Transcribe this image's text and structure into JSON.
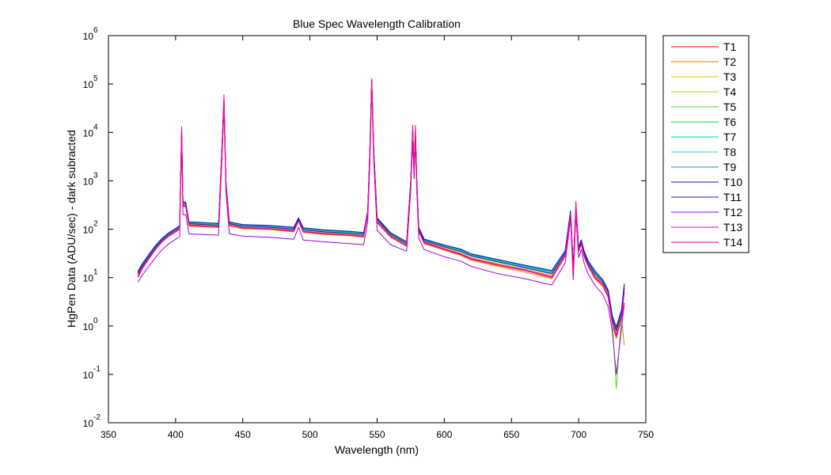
{
  "chart_data": {
    "type": "line",
    "title": "Blue Spec Wavelength Calibration",
    "xlabel": "Wavelength (nm)",
    "ylabel": "HgPen Data (ADU/sec) - dark subracted",
    "xlim": [
      350,
      750
    ],
    "ylim": [
      0.01,
      1000000
    ],
    "yscale": "log",
    "xticks": [
      350,
      400,
      450,
      500,
      550,
      600,
      650,
      700,
      750
    ],
    "yticks": [
      {
        "base": "10",
        "exp": "-2",
        "value": 0.01
      },
      {
        "base": "10",
        "exp": "-1",
        "value": 0.1
      },
      {
        "base": "10",
        "exp": "0",
        "value": 1
      },
      {
        "base": "10",
        "exp": "1",
        "value": 10
      },
      {
        "base": "10",
        "exp": "2",
        "value": 100
      },
      {
        "base": "10",
        "exp": "3",
        "value": 1000
      },
      {
        "base": "10",
        "exp": "4",
        "value": 10000
      },
      {
        "base": "10",
        "exp": "5",
        "value": 100000
      },
      {
        "base": "10",
        "exp": "6",
        "value": 1000000
      }
    ],
    "grid": false,
    "legend_position": "outside-right",
    "x": [
      372,
      375,
      380,
      385,
      390,
      395,
      400,
      403,
      404.5,
      405.5,
      407.5,
      410,
      420,
      432,
      434.5,
      436,
      437.5,
      440,
      450,
      470,
      488,
      491.5,
      495,
      510,
      530,
      540,
      543,
      544.5,
      546,
      547.5,
      550,
      560,
      572,
      575,
      576.5,
      577.5,
      578.5,
      579.5,
      581,
      585,
      600,
      612,
      620,
      640,
      660,
      680,
      690,
      694,
      696,
      698,
      700,
      702,
      704,
      707,
      712,
      718,
      722,
      725,
      728,
      732,
      734
    ],
    "series": [
      {
        "name": "T1",
        "color": "#ff0000",
        "values": [
          10,
          15,
          24,
          38,
          55,
          72,
          88,
          100,
          9000,
          300,
          300,
          120,
          115,
          110,
          4000,
          40000,
          800,
          120,
          105,
          100,
          90,
          150,
          88,
          80,
          75,
          70,
          200,
          3000,
          100000,
          3500,
          140,
          70,
          45,
          800,
          9000,
          1500,
          8500,
          900,
          90,
          52,
          38,
          30,
          24,
          18,
          14,
          10,
          28,
          200,
          14,
          250,
          35,
          50,
          28,
          18,
          10,
          7,
          4,
          1.2,
          0.6,
          1.5,
          2.5
        ]
      },
      {
        "name": "T2",
        "color": "#ee7700",
        "values": [
          10,
          15,
          24,
          38,
          55,
          72,
          88,
          100,
          8800,
          290,
          290,
          115,
          112,
          108,
          3900,
          39000,
          780,
          118,
          102,
          98,
          88,
          145,
          86,
          78,
          73,
          68,
          195,
          2900,
          98000,
          3400,
          135,
          68,
          44,
          790,
          8800,
          1450,
          8300,
          880,
          88,
          50,
          37,
          29,
          23,
          17,
          13,
          9.5,
          27,
          195,
          13,
          245,
          34,
          48,
          27,
          17,
          9.5,
          6.5,
          3.8,
          1.1,
          0.55,
          1.4,
          0.4
        ]
      },
      {
        "name": "T3",
        "color": "#e0c000",
        "values": [
          11,
          16,
          26,
          40,
          58,
          76,
          92,
          105,
          9500,
          320,
          320,
          125,
          120,
          115,
          4200,
          42000,
          850,
          125,
          110,
          105,
          95,
          155,
          92,
          84,
          78,
          73,
          210,
          3200,
          105000,
          3700,
          150,
          74,
          47,
          850,
          9500,
          1600,
          9000,
          950,
          95,
          55,
          40,
          32,
          26,
          19,
          15,
          11,
          30,
          210,
          15,
          260,
          37,
          52,
          30,
          19,
          11,
          7.5,
          4.5,
          1.3,
          0.7,
          1.6,
          7
        ]
      },
      {
        "name": "T4",
        "color": "#c0d000",
        "values": [
          11,
          16,
          26,
          40,
          58,
          76,
          92,
          106,
          9600,
          325,
          320,
          126,
          121,
          116,
          4250,
          43000,
          860,
          126,
          111,
          106,
          96,
          156,
          93,
          85,
          79,
          74,
          212,
          3250,
          106000,
          3750,
          152,
          75,
          48,
          860,
          9600,
          1620,
          9100,
          960,
          96,
          56,
          41,
          33,
          26,
          19.5,
          15,
          11,
          30,
          212,
          15,
          262,
          37,
          53,
          30,
          19,
          11,
          7.6,
          4.6,
          1.3,
          0.7,
          1.7,
          5
        ]
      },
      {
        "name": "T5",
        "color": "#50e020",
        "values": [
          12,
          17,
          27,
          42,
          60,
          79,
          96,
          110,
          10000,
          340,
          330,
          130,
          126,
          120,
          4400,
          45000,
          900,
          130,
          115,
          110,
          100,
          160,
          97,
          88,
          82,
          77,
          220,
          3400,
          110000,
          3900,
          160,
          78,
          50,
          900,
          10000,
          1700,
          9500,
          1000,
          100,
          58,
          43,
          35,
          28,
          21,
          16,
          12,
          32,
          220,
          16,
          270,
          39,
          55,
          32,
          20,
          12,
          8,
          5,
          1.4,
          0.05,
          1.8,
          6
        ]
      },
      {
        "name": "T6",
        "color": "#00d840",
        "values": [
          12,
          17,
          27,
          42,
          60,
          79,
          96,
          110,
          10000,
          340,
          330,
          130,
          126,
          120,
          4400,
          45000,
          900,
          130,
          115,
          110,
          100,
          160,
          97,
          88,
          82,
          77,
          220,
          3400,
          110000,
          3900,
          160,
          78,
          50,
          900,
          10000,
          1700,
          9500,
          1000,
          100,
          58,
          43,
          35,
          28,
          21,
          16,
          12,
          32,
          220,
          16,
          270,
          39,
          55,
          32,
          20,
          12,
          8,
          5,
          1.4,
          0.8,
          1.8,
          6
        ]
      },
      {
        "name": "T7",
        "color": "#00e090",
        "values": [
          12.5,
          18,
          28,
          43,
          62,
          81,
          99,
          113,
          10500,
          350,
          340,
          134,
          130,
          124,
          4500,
          46000,
          920,
          134,
          118,
          113,
          103,
          165,
          100,
          91,
          84,
          79,
          225,
          3500,
          115000,
          4000,
          165,
          80,
          52,
          920,
          10500,
          1750,
          9800,
          1030,
          103,
          60,
          44,
          36,
          29,
          22,
          16.5,
          12.5,
          33,
          225,
          16.5,
          280,
          40,
          57,
          33,
          21,
          12.5,
          8.3,
          5.2,
          1.5,
          0.85,
          1.9,
          6.5
        ]
      },
      {
        "name": "T8",
        "color": "#30d8c8",
        "values": [
          13,
          18,
          29,
          44,
          63,
          83,
          101,
          116,
          10800,
          360,
          350,
          138,
          133,
          127,
          4600,
          47000,
          940,
          137,
          121,
          116,
          106,
          168,
          103,
          93,
          86,
          81,
          230,
          3600,
          118000,
          4100,
          168,
          82,
          53,
          940,
          10800,
          1800,
          10000,
          1050,
          105,
          61,
          45,
          37,
          30,
          22.5,
          17,
          13,
          34,
          230,
          17,
          285,
          41,
          58,
          34,
          21.5,
          13,
          8.5,
          5.3,
          1.55,
          0.9,
          2,
          6.8
        ]
      },
      {
        "name": "T9",
        "color": "#00a0b0",
        "values": [
          13,
          18,
          29,
          45,
          64,
          84,
          102,
          117,
          11000,
          365,
          355,
          140,
          135,
          129,
          4650,
          48000,
          950,
          139,
          123,
          118,
          108,
          170,
          105,
          95,
          88,
          83,
          232,
          3650,
          120000,
          4150,
          170,
          83,
          54,
          950,
          11000,
          1820,
          10200,
          1060,
          106,
          62,
          46,
          38,
          30,
          23,
          17.5,
          13.5,
          35,
          235,
          17.5,
          290,
          42,
          59,
          35,
          22,
          13.5,
          8.7,
          5.4,
          1.6,
          0.9,
          2.1,
          7
        ]
      },
      {
        "name": "T10",
        "color": "#0020c0",
        "values": [
          13.5,
          19,
          30,
          46,
          65,
          85,
          104,
          119,
          11500,
          370,
          360,
          142,
          137,
          131,
          4700,
          49000,
          960,
          141,
          125,
          120,
          110,
          172,
          107,
          97,
          90,
          85,
          235,
          3700,
          122000,
          4200,
          172,
          85,
          55,
          960,
          11500,
          1850,
          10500,
          1080,
          108,
          63,
          47,
          39,
          31,
          23.5,
          18,
          14,
          36,
          240,
          18,
          300,
          43,
          60,
          36,
          22.5,
          14,
          9,
          5.5,
          1.65,
          0.95,
          2.2,
          7.5
        ]
      },
      {
        "name": "T11",
        "color": "#5000c8",
        "values": [
          12,
          17,
          27,
          42,
          60,
          79,
          96,
          110,
          10000,
          340,
          330,
          130,
          126,
          120,
          4400,
          45000,
          900,
          130,
          115,
          110,
          100,
          160,
          97,
          88,
          82,
          77,
          220,
          3400,
          110000,
          3900,
          160,
          78,
          50,
          900,
          10000,
          1700,
          9500,
          1000,
          100,
          58,
          43,
          35,
          28,
          21,
          16,
          12,
          32,
          220,
          16,
          270,
          39,
          55,
          32,
          20,
          12,
          8,
          5,
          1.4,
          0.8,
          1.8,
          6
        ]
      },
      {
        "name": "T12",
        "color": "#a000e0",
        "values": [
          8,
          11,
          17,
          26,
          38,
          50,
          62,
          70,
          6000,
          200,
          200,
          80,
          78,
          75,
          2800,
          30000,
          600,
          80,
          72,
          68,
          62,
          110,
          60,
          55,
          50,
          48,
          140,
          2000,
          80000,
          2500,
          95,
          48,
          35,
          600,
          7000,
          1100,
          6500,
          650,
          65,
          38,
          27,
          22,
          17,
          12,
          9.5,
          7,
          20,
          160,
          9,
          200,
          26,
          38,
          20,
          12,
          7,
          4.5,
          2.5,
          0.8,
          0.1,
          0.9,
          3
        ]
      },
      {
        "name": "T13",
        "color": "#e000e0",
        "values": [
          11,
          16,
          25,
          39,
          56,
          74,
          90,
          103,
          9200,
          310,
          305,
          122,
          118,
          112,
          4100,
          41000,
          820,
          122,
          108,
          103,
          93,
          152,
          90,
          82,
          76,
          72,
          205,
          3100,
          102000,
          3600,
          145,
          72,
          46,
          820,
          9200,
          1550,
          8800,
          920,
          92,
          54,
          39,
          31,
          25,
          18.5,
          14.5,
          10.5,
          29,
          205,
          14.5,
          255,
          36,
          51,
          29,
          18.5,
          10.5,
          7.2,
          4.2,
          1.2,
          0.65,
          1.5,
          5
        ]
      },
      {
        "name": "T14",
        "color": "#ff0080",
        "values": [
          10,
          15,
          24,
          38,
          55,
          72,
          88,
          101,
          13000,
          300,
          300,
          121,
          116,
          111,
          4000,
          60000,
          800,
          121,
          106,
          101,
          91,
          150,
          88,
          80,
          75,
          70,
          200,
          3000,
          130000,
          3500,
          140,
          70,
          45,
          800,
          14000,
          1500,
          14000,
          900,
          90,
          52,
          38,
          30,
          24,
          18,
          14,
          10,
          28,
          200,
          14,
          380,
          35,
          50,
          28,
          18,
          10,
          7,
          4,
          1.2,
          0.6,
          1.5,
          3
        ]
      }
    ]
  }
}
